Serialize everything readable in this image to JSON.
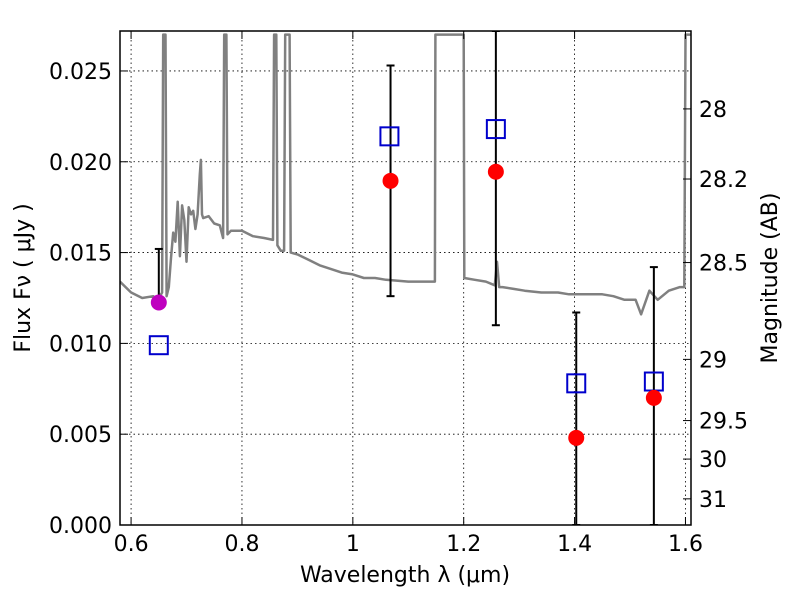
{
  "chart_data": {
    "type": "scatter",
    "xlabel": "Wavelength  λ (μm)",
    "ylabel": "Flux  Fν  ( μJy )",
    "y2label": "Magnitude (AB)",
    "xlim": [
      0.58,
      1.61
    ],
    "ylim": [
      0.0,
      0.0272
    ],
    "grid": true,
    "x_ticks": [
      {
        "value": 0.6,
        "label": "0.6"
      },
      {
        "value": 0.8,
        "label": "0.8"
      },
      {
        "value": 1.0,
        "label": "1"
      },
      {
        "value": 1.2,
        "label": "1.2"
      },
      {
        "value": 1.4,
        "label": "1.4"
      },
      {
        "value": 1.6,
        "label": "1.6"
      }
    ],
    "y_ticks": [
      {
        "value": 0.0,
        "label": "0.000"
      },
      {
        "value": 0.005,
        "label": "0.005"
      },
      {
        "value": 0.01,
        "label": "0.010"
      },
      {
        "value": 0.015,
        "label": "0.015"
      },
      {
        "value": 0.02,
        "label": "0.020"
      },
      {
        "value": 0.025,
        "label": "0.025"
      }
    ],
    "y2_ticks": [
      {
        "flux": 0.02291,
        "label": "28"
      },
      {
        "flux": 0.01905,
        "label": "28.2"
      },
      {
        "flux": 0.01445,
        "label": "28.5"
      },
      {
        "flux": 0.00912,
        "label": "29"
      },
      {
        "flux": 0.00575,
        "label": "29.5"
      },
      {
        "flux": 0.00363,
        "label": "30"
      },
      {
        "flux": 0.00144,
        "label": "31"
      }
    ],
    "observed": [
      {
        "x": 0.65,
        "y": 0.01225,
        "yerr_low": 0.0122,
        "yerr_high": 0.0152,
        "color": "#bf00bf"
      },
      {
        "x": 1.068,
        "y": 0.01895,
        "yerr_low": 0.0126,
        "yerr_high": 0.0253,
        "color": "#ff0000"
      },
      {
        "x": 1.258,
        "y": 0.01945,
        "yerr_low": 0.011,
        "yerr_high": 0.0272,
        "color": "#ff0000"
      },
      {
        "x": 1.403,
        "y": 0.0048,
        "yerr_low": 0.0,
        "yerr_high": 0.0117,
        "color": "#ff0000"
      },
      {
        "x": 1.543,
        "y": 0.007,
        "yerr_low": 0.0,
        "yerr_high": 0.0142,
        "color": "#ff0000"
      }
    ],
    "model_bandpass": [
      {
        "x": 0.65,
        "y": 0.0099
      },
      {
        "x": 1.066,
        "y": 0.0214
      },
      {
        "x": 1.258,
        "y": 0.0218
      },
      {
        "x": 1.403,
        "y": 0.0078
      },
      {
        "x": 1.543,
        "y": 0.0079
      }
    ],
    "model_spectrum": {
      "color": "#808080",
      "points": [
        [
          0.58,
          0.0134
        ],
        [
          0.6,
          0.0128
        ],
        [
          0.62,
          0.0125
        ],
        [
          0.64,
          0.0126
        ],
        [
          0.648,
          0.0122
        ],
        [
          0.652,
          0.0126
        ],
        [
          0.656,
          0.0128
        ],
        [
          0.658,
          0.027
        ],
        [
          0.662,
          0.027
        ],
        [
          0.664,
          0.0126
        ],
        [
          0.668,
          0.0131
        ],
        [
          0.672,
          0.0147
        ],
        [
          0.676,
          0.0161
        ],
        [
          0.68,
          0.0156
        ],
        [
          0.684,
          0.0178
        ],
        [
          0.688,
          0.0148
        ],
        [
          0.692,
          0.0176
        ],
        [
          0.696,
          0.0168
        ],
        [
          0.7,
          0.0145
        ],
        [
          0.704,
          0.0175
        ],
        [
          0.708,
          0.0171
        ],
        [
          0.712,
          0.0173
        ],
        [
          0.716,
          0.0163
        ],
        [
          0.72,
          0.0171
        ],
        [
          0.724,
          0.0193
        ],
        [
          0.726,
          0.0201
        ],
        [
          0.728,
          0.0171
        ],
        [
          0.73,
          0.0169
        ],
        [
          0.74,
          0.017
        ],
        [
          0.75,
          0.0166
        ],
        [
          0.76,
          0.0165
        ],
        [
          0.766,
          0.0158
        ],
        [
          0.768,
          0.027
        ],
        [
          0.772,
          0.027
        ],
        [
          0.774,
          0.016
        ],
        [
          0.78,
          0.0162
        ],
        [
          0.8,
          0.0162
        ],
        [
          0.82,
          0.0159
        ],
        [
          0.84,
          0.0158
        ],
        [
          0.856,
          0.0157
        ],
        [
          0.858,
          0.027
        ],
        [
          0.862,
          0.027
        ],
        [
          0.864,
          0.0154
        ],
        [
          0.87,
          0.0151
        ],
        [
          0.876,
          0.0151
        ],
        [
          0.878,
          0.027
        ],
        [
          0.886,
          0.027
        ],
        [
          0.888,
          0.015
        ],
        [
          0.9,
          0.0149
        ],
        [
          0.92,
          0.0146
        ],
        [
          0.94,
          0.0143
        ],
        [
          0.96,
          0.0141
        ],
        [
          0.98,
          0.0139
        ],
        [
          1.0,
          0.0138
        ],
        [
          1.02,
          0.0136
        ],
        [
          1.04,
          0.0136
        ],
        [
          1.06,
          0.0135
        ],
        [
          1.1,
          0.0134
        ],
        [
          1.13,
          0.0134
        ],
        [
          1.148,
          0.0134
        ],
        [
          1.149,
          0.027
        ],
        [
          1.2,
          0.027
        ],
        [
          1.201,
          0.0136
        ],
        [
          1.22,
          0.0135
        ],
        [
          1.24,
          0.0134
        ],
        [
          1.256,
          0.0132
        ],
        [
          1.26,
          0.0145
        ],
        [
          1.264,
          0.0131
        ],
        [
          1.27,
          0.0131
        ],
        [
          1.29,
          0.013
        ],
        [
          1.31,
          0.0129
        ],
        [
          1.34,
          0.0128
        ],
        [
          1.37,
          0.0128
        ],
        [
          1.39,
          0.0127
        ],
        [
          1.42,
          0.0127
        ],
        [
          1.45,
          0.0127
        ],
        [
          1.47,
          0.0126
        ],
        [
          1.49,
          0.0124
        ],
        [
          1.51,
          0.0124
        ],
        [
          1.52,
          0.0116
        ],
        [
          1.535,
          0.0129
        ],
        [
          1.55,
          0.0124
        ],
        [
          1.57,
          0.0129
        ],
        [
          1.59,
          0.0131
        ],
        [
          1.598,
          0.0131
        ],
        [
          1.6,
          0.027
        ],
        [
          1.61,
          0.027
        ]
      ]
    }
  }
}
